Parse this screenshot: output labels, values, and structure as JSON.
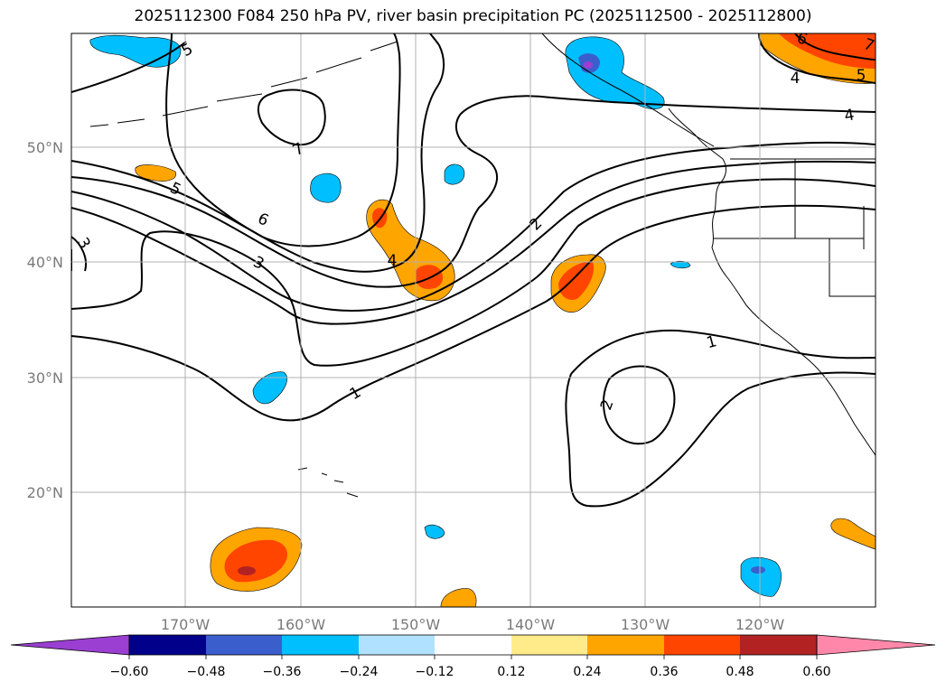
{
  "title": "2025112300 F084 250 hPa PV, river basin precipitation PC (2025112500 - 2025112800)",
  "longitude_labels": [
    "170°W",
    "160°W",
    "150°W",
    "140°W",
    "130°W",
    "120°W"
  ],
  "latitude_labels": [
    "50°N",
    "40°N",
    "30°N",
    "20°N"
  ],
  "colorbar": {
    "tick_labels": [
      "−0.60",
      "−0.48",
      "−0.36",
      "−0.24",
      "−0.12",
      "0.12",
      "0.24",
      "0.36",
      "0.48",
      "0.60"
    ],
    "colors": [
      "#9a3fd1",
      "#00008b",
      "#3a5fcd",
      "#00bfff",
      "#b0e2ff",
      "#ffffff",
      "#ffeb8a",
      "#ffa500",
      "#ff4500",
      "#b22222",
      "#ff88aa"
    ]
  },
  "contour_labels": [
    "5",
    "7",
    "6",
    "5",
    "4",
    "3",
    "2",
    "1",
    "2",
    "1",
    "6",
    "4",
    "5",
    "4",
    "7",
    "3"
  ],
  "colors": {
    "shade_blue": "#00bfff",
    "shade_dark_blue": "#3a5fcd",
    "shade_purple": "#9a3fd1",
    "shade_orange": "#ffa500",
    "shade_red": "#ff4500",
    "shade_dark_red": "#b22222",
    "grid": "#b0b0b0"
  }
}
